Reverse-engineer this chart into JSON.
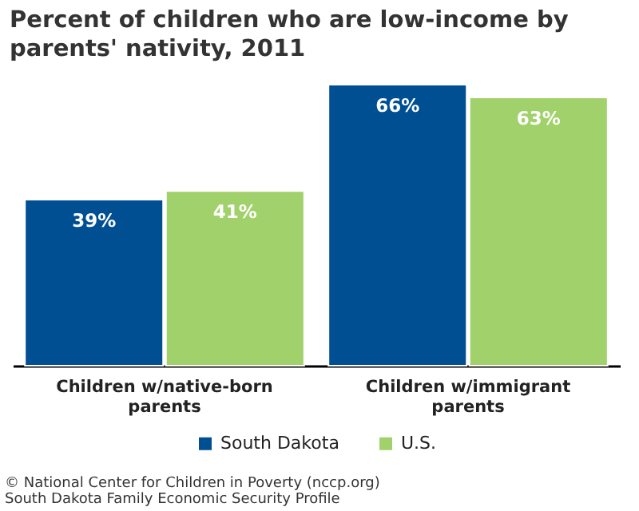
{
  "chart_data": {
    "type": "bar",
    "title": "Percent of children who are low-income by parents' nativity, 2011",
    "categories": [
      "Children w/native-born parents",
      "Children w/immigrant parents"
    ],
    "series": [
      {
        "name": "South Dakota",
        "color": "#004f93",
        "values": [
          39,
          66
        ],
        "value_labels": [
          "39%",
          "66%"
        ]
      },
      {
        "name": "U.S.",
        "color": "#a1d16a",
        "values": [
          41,
          63
        ],
        "value_labels": [
          "41%",
          "63%"
        ]
      }
    ],
    "legend": "bottom",
    "annotations": [
      "© National Center for Children in Poverty (nccp.org)",
      "South Dakota Family Economic Security Profile"
    ]
  }
}
